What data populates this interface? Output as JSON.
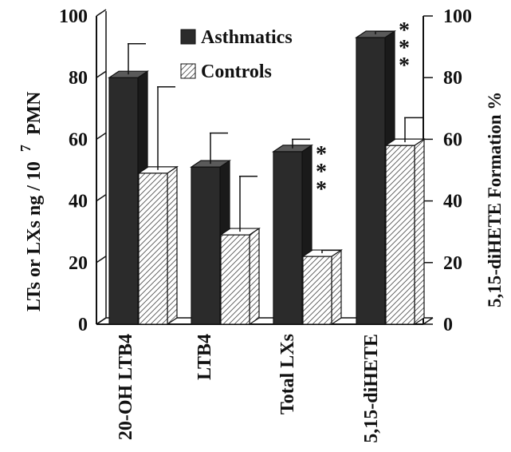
{
  "chart_data": {
    "type": "bar",
    "categories": [
      "20-OH LTB4",
      "LTB4",
      "Total LXs",
      "5,15-diHETE"
    ],
    "series": [
      {
        "name": "Asthmatics",
        "values": [
          80,
          51,
          56,
          93
        ],
        "errors": [
          11,
          11,
          4,
          2
        ]
      },
      {
        "name": "Controls",
        "values": [
          49,
          29,
          22,
          58
        ],
        "errors": [
          28,
          19,
          2,
          9
        ]
      }
    ],
    "axes": {
      "left": {
        "ylabel_main": "LTs  or  LXs   ng / 10",
        "ylabel_superscript": "7",
        "ylabel_suffix": "PMN",
        "ylim": [
          0,
          100
        ],
        "ticks": [
          "0",
          "20",
          "40",
          "60",
          "80",
          "100"
        ]
      },
      "right": {
        "ylabel": "5,15-diHETE  Formation  %",
        "ylim": [
          0,
          100
        ],
        "ticks": [
          "0",
          "20",
          "40",
          "60",
          "80",
          "100"
        ]
      }
    },
    "significance": [
      {
        "category": "Total LXs",
        "marks": [
          "*",
          "*",
          "*"
        ]
      },
      {
        "category": "5,15-diHETE",
        "marks": [
          "*",
          "*",
          "*"
        ]
      }
    ],
    "legend": {
      "placement": "top-center"
    },
    "grid": false
  },
  "colors": {
    "asthmatics": "#2b2b2b",
    "asthmatics_side": "#1a1a1a",
    "asthmatics_top": "#5a5a5a",
    "controls": "#ffffff",
    "axis": "#111111"
  }
}
